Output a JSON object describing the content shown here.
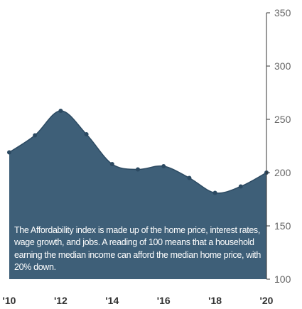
{
  "chart_data": {
    "type": "area",
    "x": [
      2010,
      2011,
      2012,
      2013,
      2014,
      2015,
      2016,
      2017,
      2018,
      2019,
      2020
    ],
    "series": [
      {
        "values": [
          219,
          235,
          258,
          236,
          208,
          203,
          206,
          195,
          181,
          187,
          200
        ]
      }
    ],
    "x_tick_labels": [
      "'10",
      "'12",
      "'14",
      "'16",
      "'18",
      "'20"
    ],
    "x_tick_values": [
      2010,
      2012,
      2014,
      2016,
      2018,
      2020
    ],
    "y_tick_labels": [
      "350",
      "300",
      "250",
      "200",
      "150",
      "100"
    ],
    "y_tick_values": [
      350,
      300,
      250,
      200,
      150,
      100
    ],
    "ylim": [
      100,
      350
    ],
    "xlim": [
      2010,
      2020
    ],
    "y_axis_side": "right",
    "annotation": "The Affordability index is made up of the home price, interest rates, wage growth, and jobs. A reading of 100 means that a household earning the median income can afford the median home price, with 20% down.",
    "colors": {
      "area_fill": "#3e5f78",
      "line": "#2c4a62",
      "axis": "#333333"
    }
  }
}
